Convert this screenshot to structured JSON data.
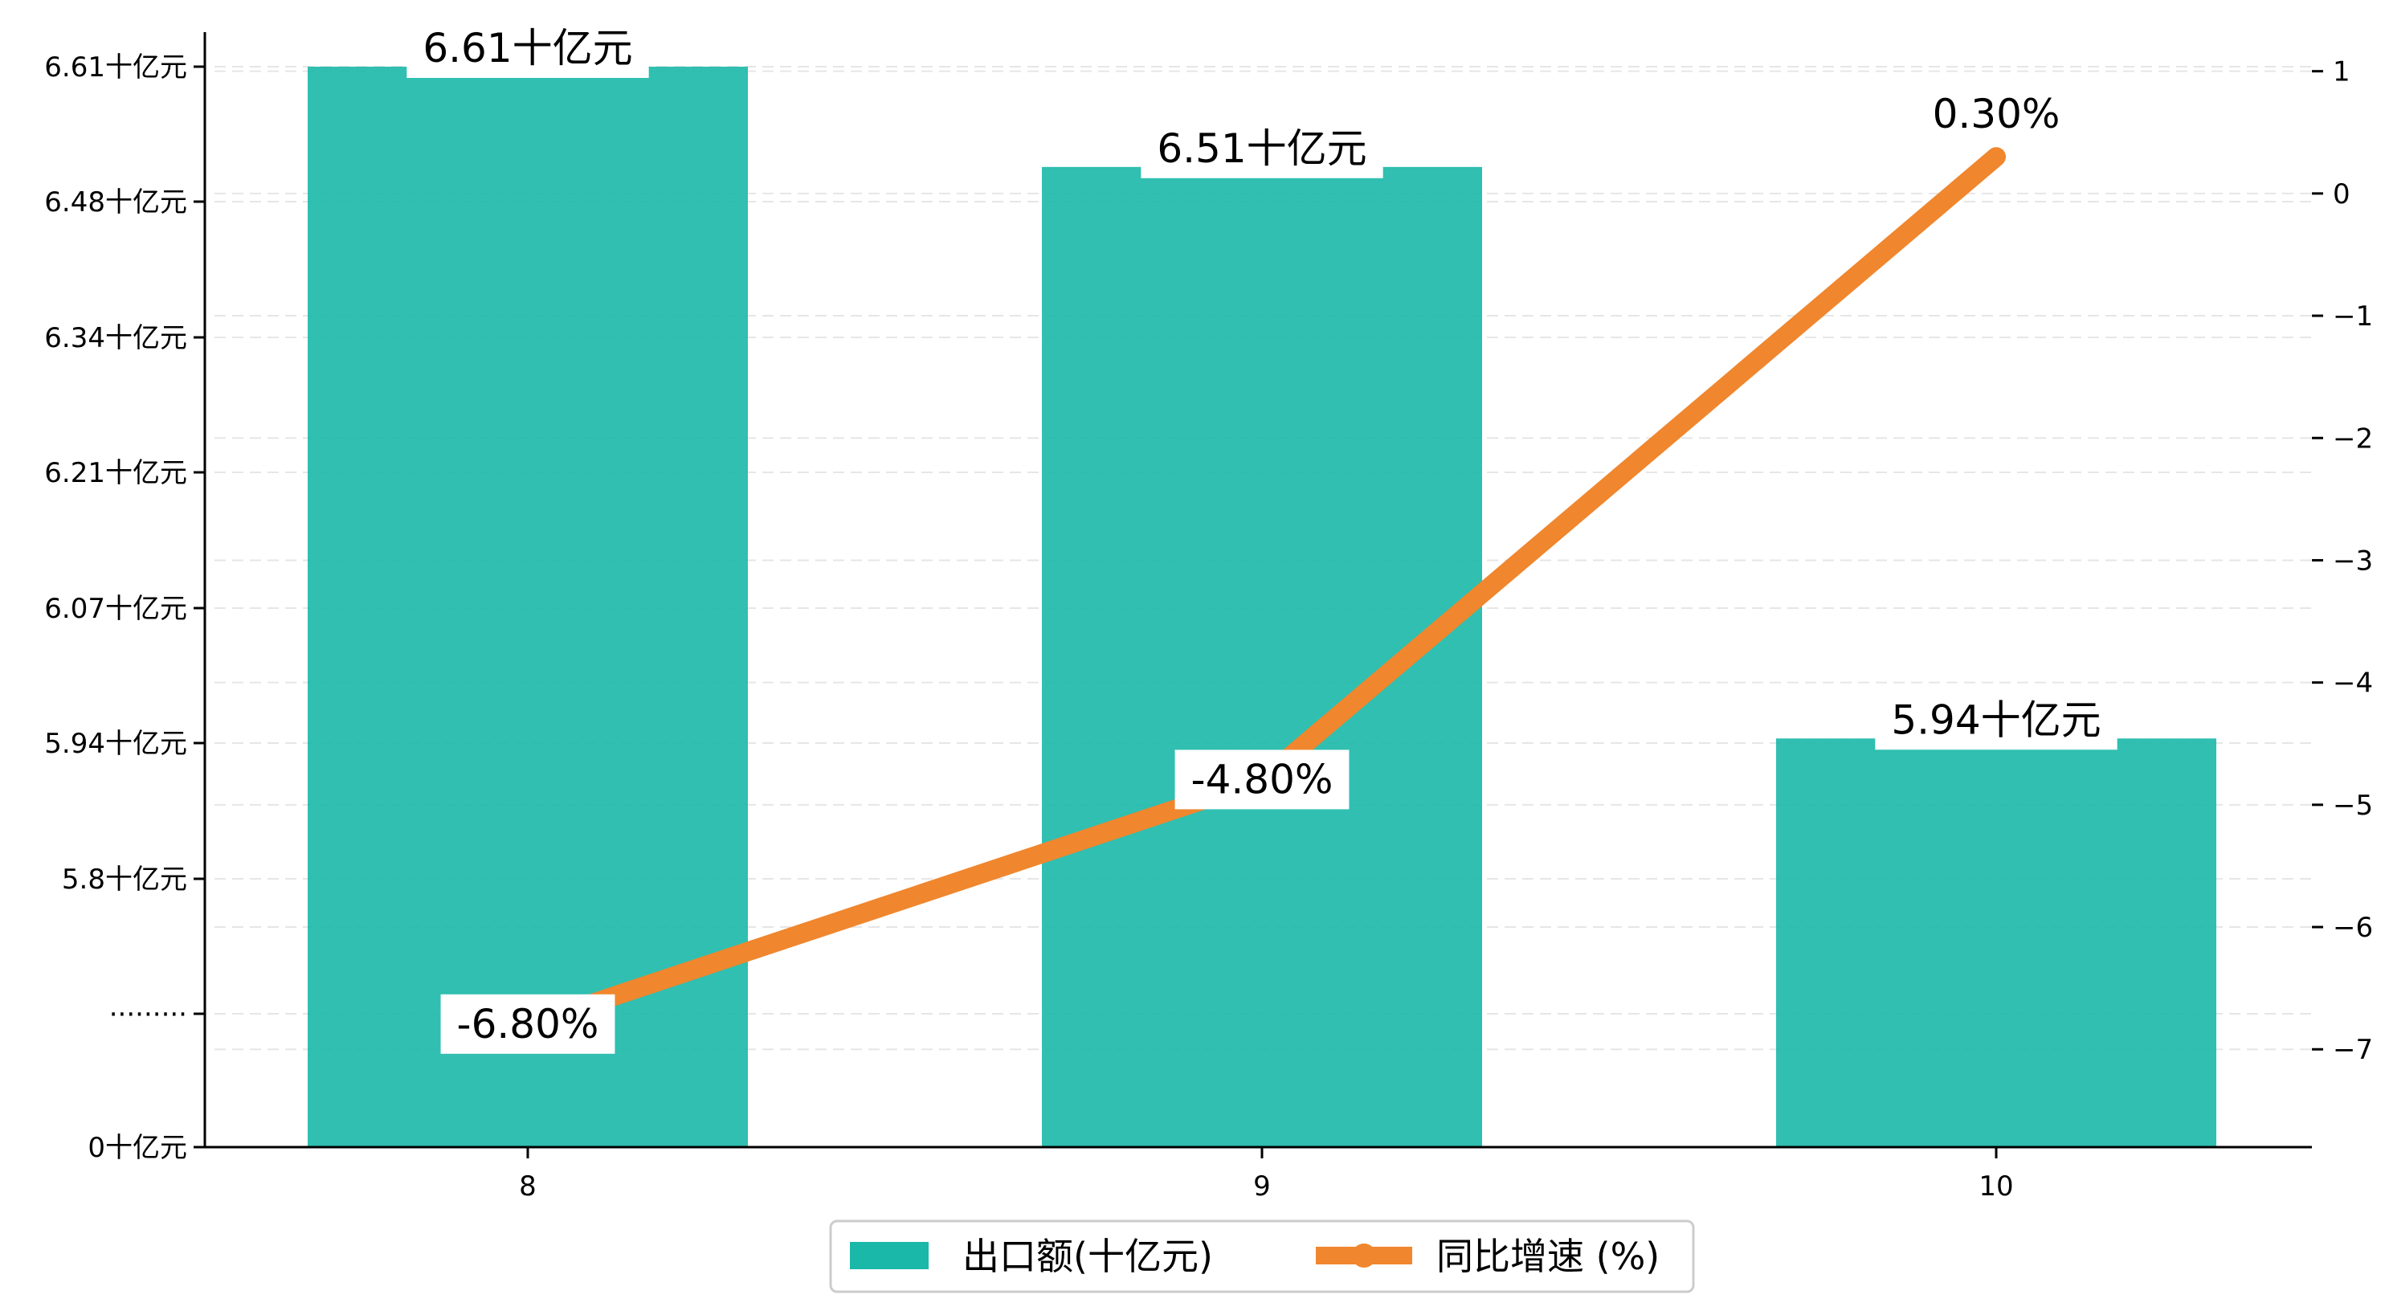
{
  "colors": {
    "bar": "#1ab8a8",
    "line": "#f0862d",
    "grid": "#e6e6e6",
    "axis": "#000000",
    "legend_border": "#cccccc"
  },
  "chart_data": {
    "type": "bar+line",
    "categories": [
      "8",
      "9",
      "10"
    ],
    "series": [
      {
        "name": "出口额(十亿元)",
        "type": "bar",
        "axis": "left",
        "values": [
          6.61,
          6.51,
          5.94
        ],
        "labels": [
          "6.61十亿元",
          "6.51十亿元",
          "5.94十亿元"
        ]
      },
      {
        "name": "同比增速 (%)",
        "type": "line",
        "axis": "right",
        "values": [
          -6.8,
          -4.8,
          0.3
        ],
        "labels": [
          "-6.80%",
          "-4.80%",
          "0.30%"
        ]
      }
    ],
    "left_axis": {
      "broken": true,
      "ticks": [
        "0十亿元",
        "·········",
        "5.8十亿元",
        "5.94十亿元",
        "6.07十亿元",
        "6.21十亿元",
        "6.34十亿元",
        "6.48十亿元",
        "6.61十亿元"
      ]
    },
    "right_axis": {
      "ylim": [
        -7.8,
        1.3
      ],
      "ticks": [
        1,
        0,
        -1,
        -2,
        -3,
        -4,
        -5,
        -6,
        -7
      ],
      "tick_labels": [
        "1",
        "0",
        "−1",
        "−2",
        "−3",
        "−4",
        "−5",
        "−6",
        "−7"
      ]
    },
    "grid": "horizontal-dashed",
    "legend": {
      "position": "bottom-center",
      "entries": [
        "出口额(十亿元)",
        "同比增速 (%)"
      ]
    }
  }
}
